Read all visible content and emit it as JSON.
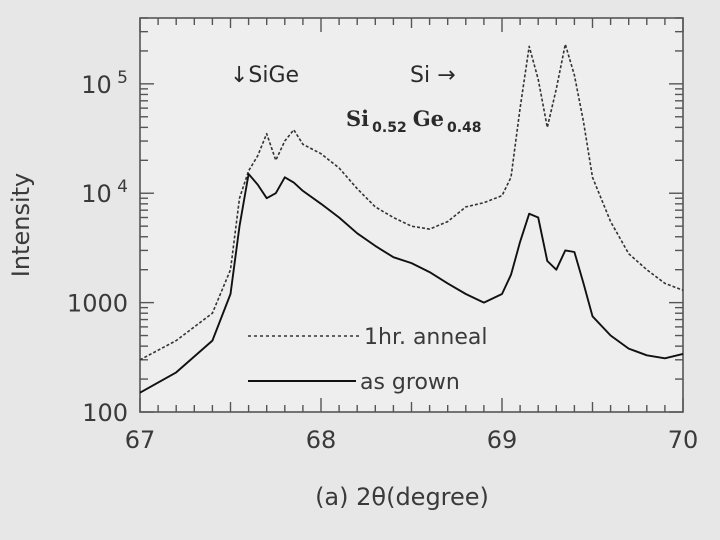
{
  "chart_data": {
    "type": "line",
    "xlabel": "(a) 2θ(degree)",
    "ylabel": "Intensity",
    "xlim": [
      67,
      70
    ],
    "ylim": [
      100,
      400000
    ],
    "yscale": "log",
    "x_ticks": [
      "67",
      "68",
      "69",
      "70"
    ],
    "y_ticks": [
      {
        "value": 100,
        "base": "100",
        "exp": ""
      },
      {
        "value": 1000,
        "base": "1000",
        "exp": ""
      },
      {
        "value": 10000,
        "base": "10",
        "exp": "4"
      },
      {
        "value": 100000,
        "base": "10",
        "exp": "5"
      }
    ],
    "grid": false,
    "annotations": {
      "sige_arrow": "↓SiGe",
      "si_arrow": "Si →",
      "composition_si": "Si",
      "composition_si_sub": "0.52",
      "composition_ge": "Ge",
      "composition_ge_sub": "0.48"
    },
    "legend_placement": "lower-center",
    "series": [
      {
        "name": "1hr. anneal",
        "style": "dashed",
        "color": "#333333",
        "x": [
          67.0,
          67.2,
          67.4,
          67.5,
          67.55,
          67.6,
          67.65,
          67.7,
          67.75,
          67.8,
          67.85,
          67.9,
          68.0,
          68.1,
          68.2,
          68.3,
          68.4,
          68.5,
          68.6,
          68.7,
          68.8,
          68.9,
          69.0,
          69.05,
          69.1,
          69.15,
          69.2,
          69.25,
          69.3,
          69.35,
          69.4,
          69.45,
          69.5,
          69.6,
          69.7,
          69.8,
          69.9,
          70.0
        ],
        "y": [
          300,
          450,
          800,
          2000,
          9000,
          16000,
          22000,
          35000,
          20000,
          30000,
          38000,
          28000,
          23000,
          17000,
          11000,
          7500,
          6000,
          5000,
          4700,
          5500,
          7500,
          8200,
          9500,
          14000,
          60000,
          220000,
          110000,
          40000,
          90000,
          230000,
          120000,
          45000,
          14000,
          5500,
          2800,
          2000,
          1500,
          1300
        ]
      },
      {
        "name": "as grown",
        "style": "solid",
        "color": "#111111",
        "x": [
          67.0,
          67.2,
          67.4,
          67.5,
          67.55,
          67.6,
          67.65,
          67.7,
          67.75,
          67.8,
          67.85,
          67.9,
          68.0,
          68.1,
          68.2,
          68.3,
          68.4,
          68.5,
          68.6,
          68.7,
          68.8,
          68.9,
          69.0,
          69.05,
          69.1,
          69.15,
          69.2,
          69.25,
          69.3,
          69.35,
          69.4,
          69.45,
          69.5,
          69.6,
          69.7,
          69.8,
          69.9,
          70.0
        ],
        "y": [
          150,
          230,
          450,
          1200,
          5000,
          15000,
          12000,
          9000,
          10000,
          14000,
          12500,
          10500,
          8000,
          6000,
          4300,
          3300,
          2600,
          2300,
          1900,
          1500,
          1200,
          1000,
          1200,
          1800,
          3600,
          6500,
          6000,
          2400,
          2000,
          3000,
          2900,
          1500,
          750,
          500,
          380,
          330,
          310,
          340
        ]
      }
    ]
  }
}
